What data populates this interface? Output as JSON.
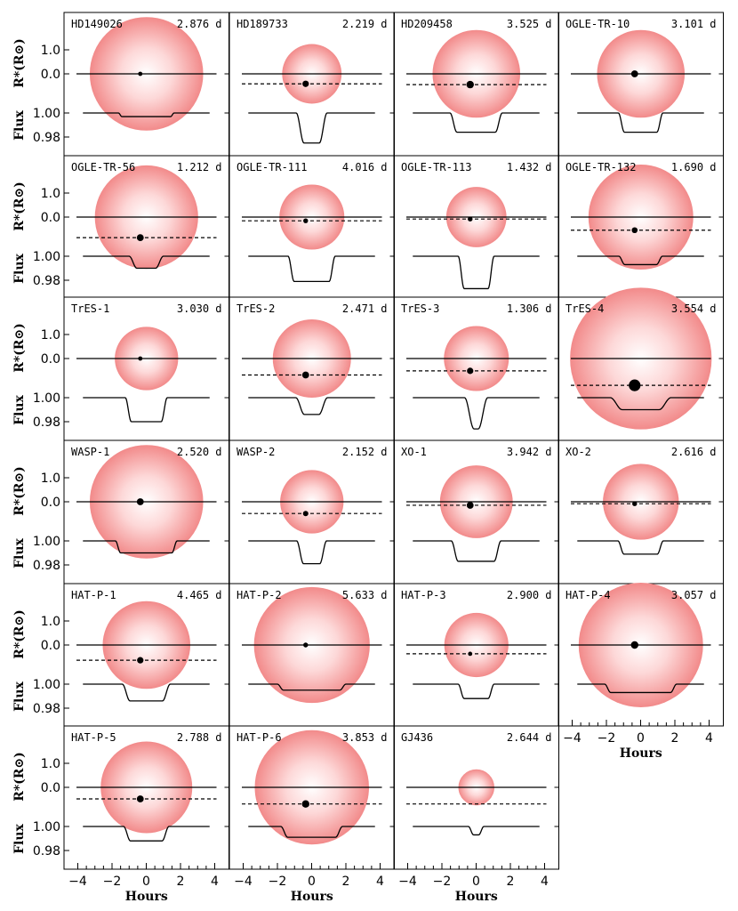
{
  "chart_data": {
    "type": "transit-panel-grid",
    "xlabel": "Hours",
    "xlim": [
      -4.5,
      4.5
    ],
    "xticks": [
      -4,
      -2,
      0,
      2,
      4
    ],
    "xtick_labels": [
      "−4",
      "−2",
      "0",
      "2",
      "4"
    ],
    "ylabel_radius": "R*(R⊙)",
    "ylabel_flux": "Flux",
    "radius_ticks": [
      "1.0",
      "0.0"
    ],
    "flux_ticks": [
      "1.00",
      "0.98"
    ],
    "radius_tick_values": [
      1.0,
      0.0
    ],
    "flux_tick_values": [
      1.0,
      0.98
    ],
    "panels": [
      {
        "name": "HD149026",
        "period": "2.876 d",
        "r_star": 1.45,
        "b": 0.0,
        "rp": 0.08,
        "depth": 0.003,
        "t14": 3.25,
        "tau": 0.2
      },
      {
        "name": "HD189733",
        "period": "2.219 d",
        "r_star": 0.76,
        "b": -0.51,
        "rp": 0.12,
        "depth": 0.025,
        "t14": 1.8,
        "tau": 0.45
      },
      {
        "name": "HD209458",
        "period": "3.525 d",
        "r_star": 1.12,
        "b": -0.55,
        "rp": 0.14,
        "depth": 0.016,
        "t14": 3.05,
        "tau": 0.4
      },
      {
        "name": "OGLE-TR-10",
        "period": "3.101 d",
        "r_star": 1.12,
        "b": 0.0,
        "rp": 0.13,
        "depth": 0.016,
        "t14": 2.6,
        "tau": 0.35
      },
      {
        "name": "OGLE-TR-56",
        "period": "1.212 d",
        "r_star": 1.32,
        "b": -1.05,
        "rp": 0.13,
        "depth": 0.01,
        "t14": 2.0,
        "tau": 0.45
      },
      {
        "name": "OGLE-TR-111",
        "period": "4.016 d",
        "r_star": 0.83,
        "b": -0.19,
        "rp": 0.09,
        "depth": 0.021,
        "t14": 2.75,
        "tau": 0.35
      },
      {
        "name": "OGLE-TR-113",
        "period": "1.432 d",
        "r_star": 0.77,
        "b": -0.1,
        "rp": 0.09,
        "depth": 0.027,
        "t14": 2.1,
        "tau": 0.35
      },
      {
        "name": "OGLE-TR-132",
        "period": "1.690 d",
        "r_star": 1.34,
        "b": -0.67,
        "rp": 0.11,
        "depth": 0.007,
        "t14": 2.55,
        "tau": 0.35
      },
      {
        "name": "TrES-1",
        "period": "3.030 d",
        "r_star": 0.81,
        "b": 0.0,
        "rp": 0.08,
        "depth": 0.02,
        "t14": 2.45,
        "tau": 0.35
      },
      {
        "name": "TrES-2",
        "period": "2.471 d",
        "r_star": 1.0,
        "b": -0.84,
        "rp": 0.13,
        "depth": 0.014,
        "t14": 1.85,
        "tau": 0.5
      },
      {
        "name": "TrES-3",
        "period": "1.306 d",
        "r_star": 0.83,
        "b": -0.63,
        "rp": 0.12,
        "depth": 0.026,
        "t14": 1.35,
        "tau": 0.55
      },
      {
        "name": "TrES-4",
        "period": "3.554 d",
        "r_star": 1.81,
        "b": -1.37,
        "rp": 0.22,
        "depth": 0.01,
        "t14": 3.55,
        "tau": 0.7
      },
      {
        "name": "WASP-1",
        "period": "2.520 d",
        "r_star": 1.45,
        "b": 0.0,
        "rp": 0.13,
        "depth": 0.01,
        "t14": 3.6,
        "tau": 0.3
      },
      {
        "name": "WASP-2",
        "period": "2.152 d",
        "r_star": 0.81,
        "b": -0.6,
        "rp": 0.1,
        "depth": 0.019,
        "t14": 1.75,
        "tau": 0.4
      },
      {
        "name": "XO-1",
        "period": "3.942 d",
        "r_star": 0.93,
        "b": -0.18,
        "rp": 0.13,
        "depth": 0.017,
        "t14": 2.9,
        "tau": 0.4
      },
      {
        "name": "XO-2",
        "period": "2.616 d",
        "r_star": 0.97,
        "b": -0.1,
        "rp": 0.09,
        "depth": 0.011,
        "t14": 2.65,
        "tau": 0.35
      },
      {
        "name": "HAT-P-1",
        "period": "4.465 d",
        "r_star": 1.12,
        "b": -0.78,
        "rp": 0.12,
        "depth": 0.014,
        "t14": 2.8,
        "tau": 0.45
      },
      {
        "name": "HAT-P-2",
        "period": "5.633 d",
        "r_star": 1.48,
        "b": 0.0,
        "rp": 0.09,
        "depth": 0.005,
        "t14": 4.0,
        "tau": 0.35
      },
      {
        "name": "HAT-P-3",
        "period": "2.900 d",
        "r_star": 0.82,
        "b": -0.45,
        "rp": 0.08,
        "depth": 0.012,
        "t14": 2.1,
        "tau": 0.35
      },
      {
        "name": "HAT-P-4",
        "period": "3.057 d",
        "r_star": 1.59,
        "b": 0.0,
        "rp": 0.14,
        "depth": 0.007,
        "t14": 4.2,
        "tau": 0.35
      },
      {
        "name": "HAT-P-5",
        "period": "2.788 d",
        "r_star": 1.17,
        "b": -0.59,
        "rp": 0.13,
        "depth": 0.012,
        "t14": 2.65,
        "tau": 0.4
      },
      {
        "name": "HAT-P-6",
        "period": "3.853 d",
        "r_star": 1.46,
        "b": -0.85,
        "rp": 0.14,
        "depth": 0.009,
        "t14": 3.6,
        "tau": 0.4
      },
      {
        "name": "GJ436",
        "period": "2.644 d",
        "r_star": 0.46,
        "b": -0.85,
        "rp": 0.0,
        "depth": 0.007,
        "t14": 0.9,
        "tau": 0.3
      }
    ]
  }
}
